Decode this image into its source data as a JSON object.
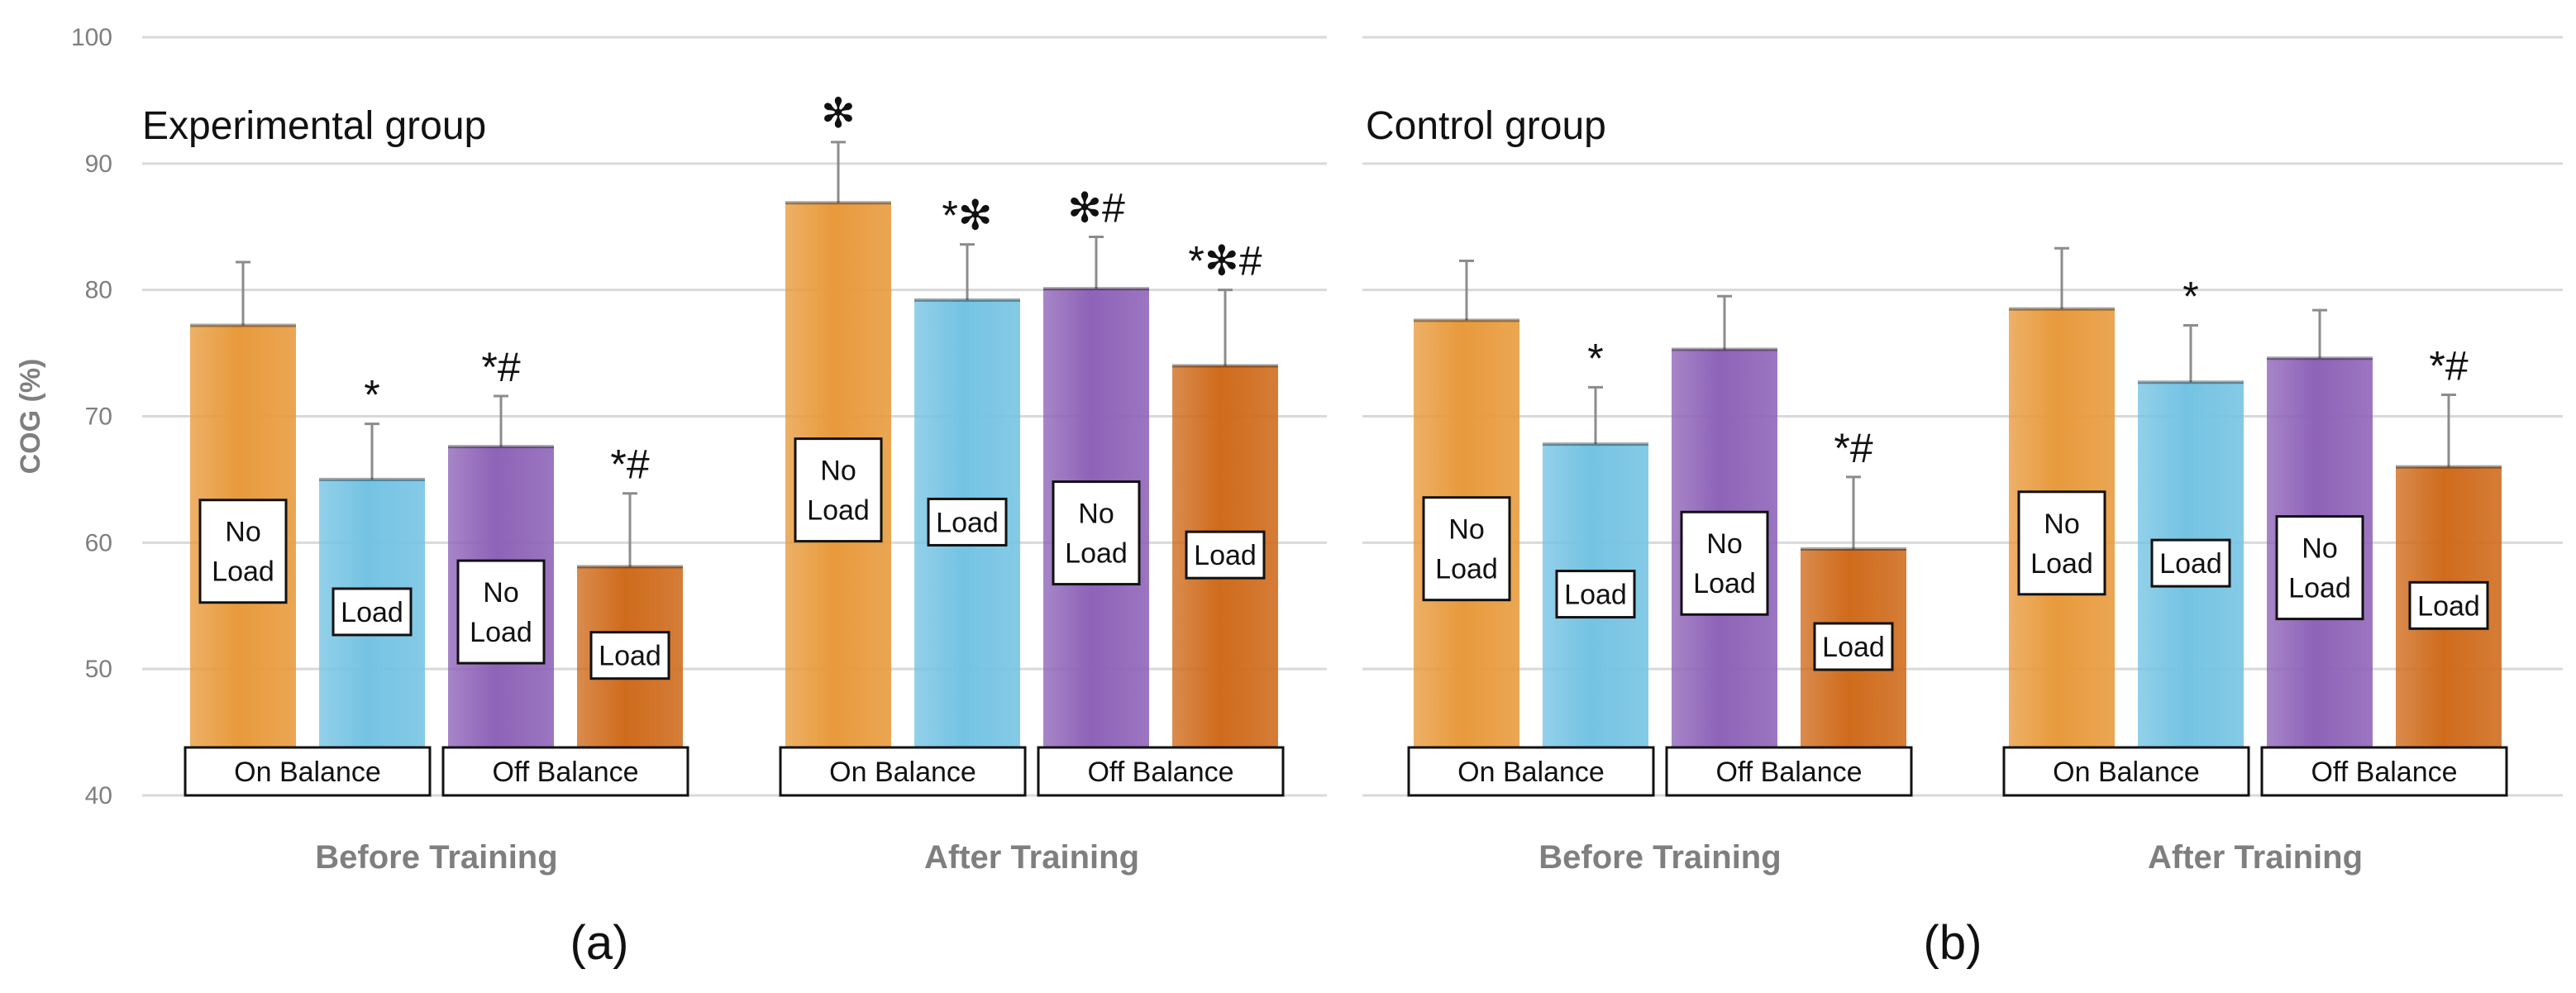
{
  "figure": {
    "panel_a_label": "(a)",
    "panel_b_label": "(b)"
  },
  "colors": {
    "on_balance_no_load": "#e89a3c",
    "on_balance_load": "#74c3e3",
    "off_balance_no_load": "#8e63b8",
    "off_balance_load": "#cf6b1c",
    "grid": "#d9d9d9",
    "label_text": "#7f7f7f"
  },
  "chart_data": [
    {
      "type": "bar",
      "title": "Experimental group",
      "ylabel": "COG (%)",
      "ylim": [
        40,
        100
      ],
      "yticks": [
        40,
        50,
        60,
        70,
        80,
        90,
        100
      ],
      "grid": true,
      "groups": [
        "Before Training",
        "After Training"
      ],
      "conditions": [
        "On Balance",
        "Off Balance"
      ],
      "bars": [
        {
          "group": "Before Training",
          "condition": "On Balance",
          "load": "No Load",
          "value": 77.2,
          "error": 5.0,
          "annotation": ""
        },
        {
          "group": "Before Training",
          "condition": "On Balance",
          "load": "Load",
          "value": 65.0,
          "error": 4.4,
          "annotation": "*"
        },
        {
          "group": "Before Training",
          "condition": "Off Balance",
          "load": "No Load",
          "value": 67.6,
          "error": 4.0,
          "annotation": "*#"
        },
        {
          "group": "Before Training",
          "condition": "Off Balance",
          "load": "Load",
          "value": 58.1,
          "error": 5.8,
          "annotation": "*#"
        },
        {
          "group": "After Training",
          "condition": "On Balance",
          "load": "No Load",
          "value": 86.9,
          "error": 4.8,
          "annotation": "✻"
        },
        {
          "group": "After Training",
          "condition": "On Balance",
          "load": "Load",
          "value": 79.2,
          "error": 4.4,
          "annotation": "*✻"
        },
        {
          "group": "After Training",
          "condition": "Off Balance",
          "load": "No Load",
          "value": 80.1,
          "error": 4.1,
          "annotation": "✻#"
        },
        {
          "group": "After Training",
          "condition": "Off Balance",
          "load": "Load",
          "value": 74.0,
          "error": 6.0,
          "annotation": "*✻#"
        }
      ]
    },
    {
      "type": "bar",
      "title": "Control group",
      "ylabel": "",
      "ylim": [
        40,
        100
      ],
      "yticks": [
        40,
        50,
        60,
        70,
        80,
        90,
        100
      ],
      "grid": true,
      "groups": [
        "Before Training",
        "After Training"
      ],
      "conditions": [
        "On Balance",
        "Off Balance"
      ],
      "bars": [
        {
          "group": "Before Training",
          "condition": "On Balance",
          "load": "No Load",
          "value": 77.6,
          "error": 4.7,
          "annotation": ""
        },
        {
          "group": "Before Training",
          "condition": "On Balance",
          "load": "Load",
          "value": 67.8,
          "error": 4.5,
          "annotation": "*"
        },
        {
          "group": "Before Training",
          "condition": "Off Balance",
          "load": "No Load",
          "value": 75.3,
          "error": 4.2,
          "annotation": ""
        },
        {
          "group": "Before Training",
          "condition": "Off Balance",
          "load": "Load",
          "value": 59.5,
          "error": 5.7,
          "annotation": "*#"
        },
        {
          "group": "After Training",
          "condition": "On Balance",
          "load": "No Load",
          "value": 78.5,
          "error": 4.8,
          "annotation": ""
        },
        {
          "group": "After Training",
          "condition": "On Balance",
          "load": "Load",
          "value": 72.7,
          "error": 4.5,
          "annotation": "*"
        },
        {
          "group": "After Training",
          "condition": "Off Balance",
          "load": "No Load",
          "value": 74.6,
          "error": 3.8,
          "annotation": ""
        },
        {
          "group": "After Training",
          "condition": "Off Balance",
          "load": "Load",
          "value": 66.0,
          "error": 5.7,
          "annotation": "*#"
        }
      ]
    }
  ]
}
